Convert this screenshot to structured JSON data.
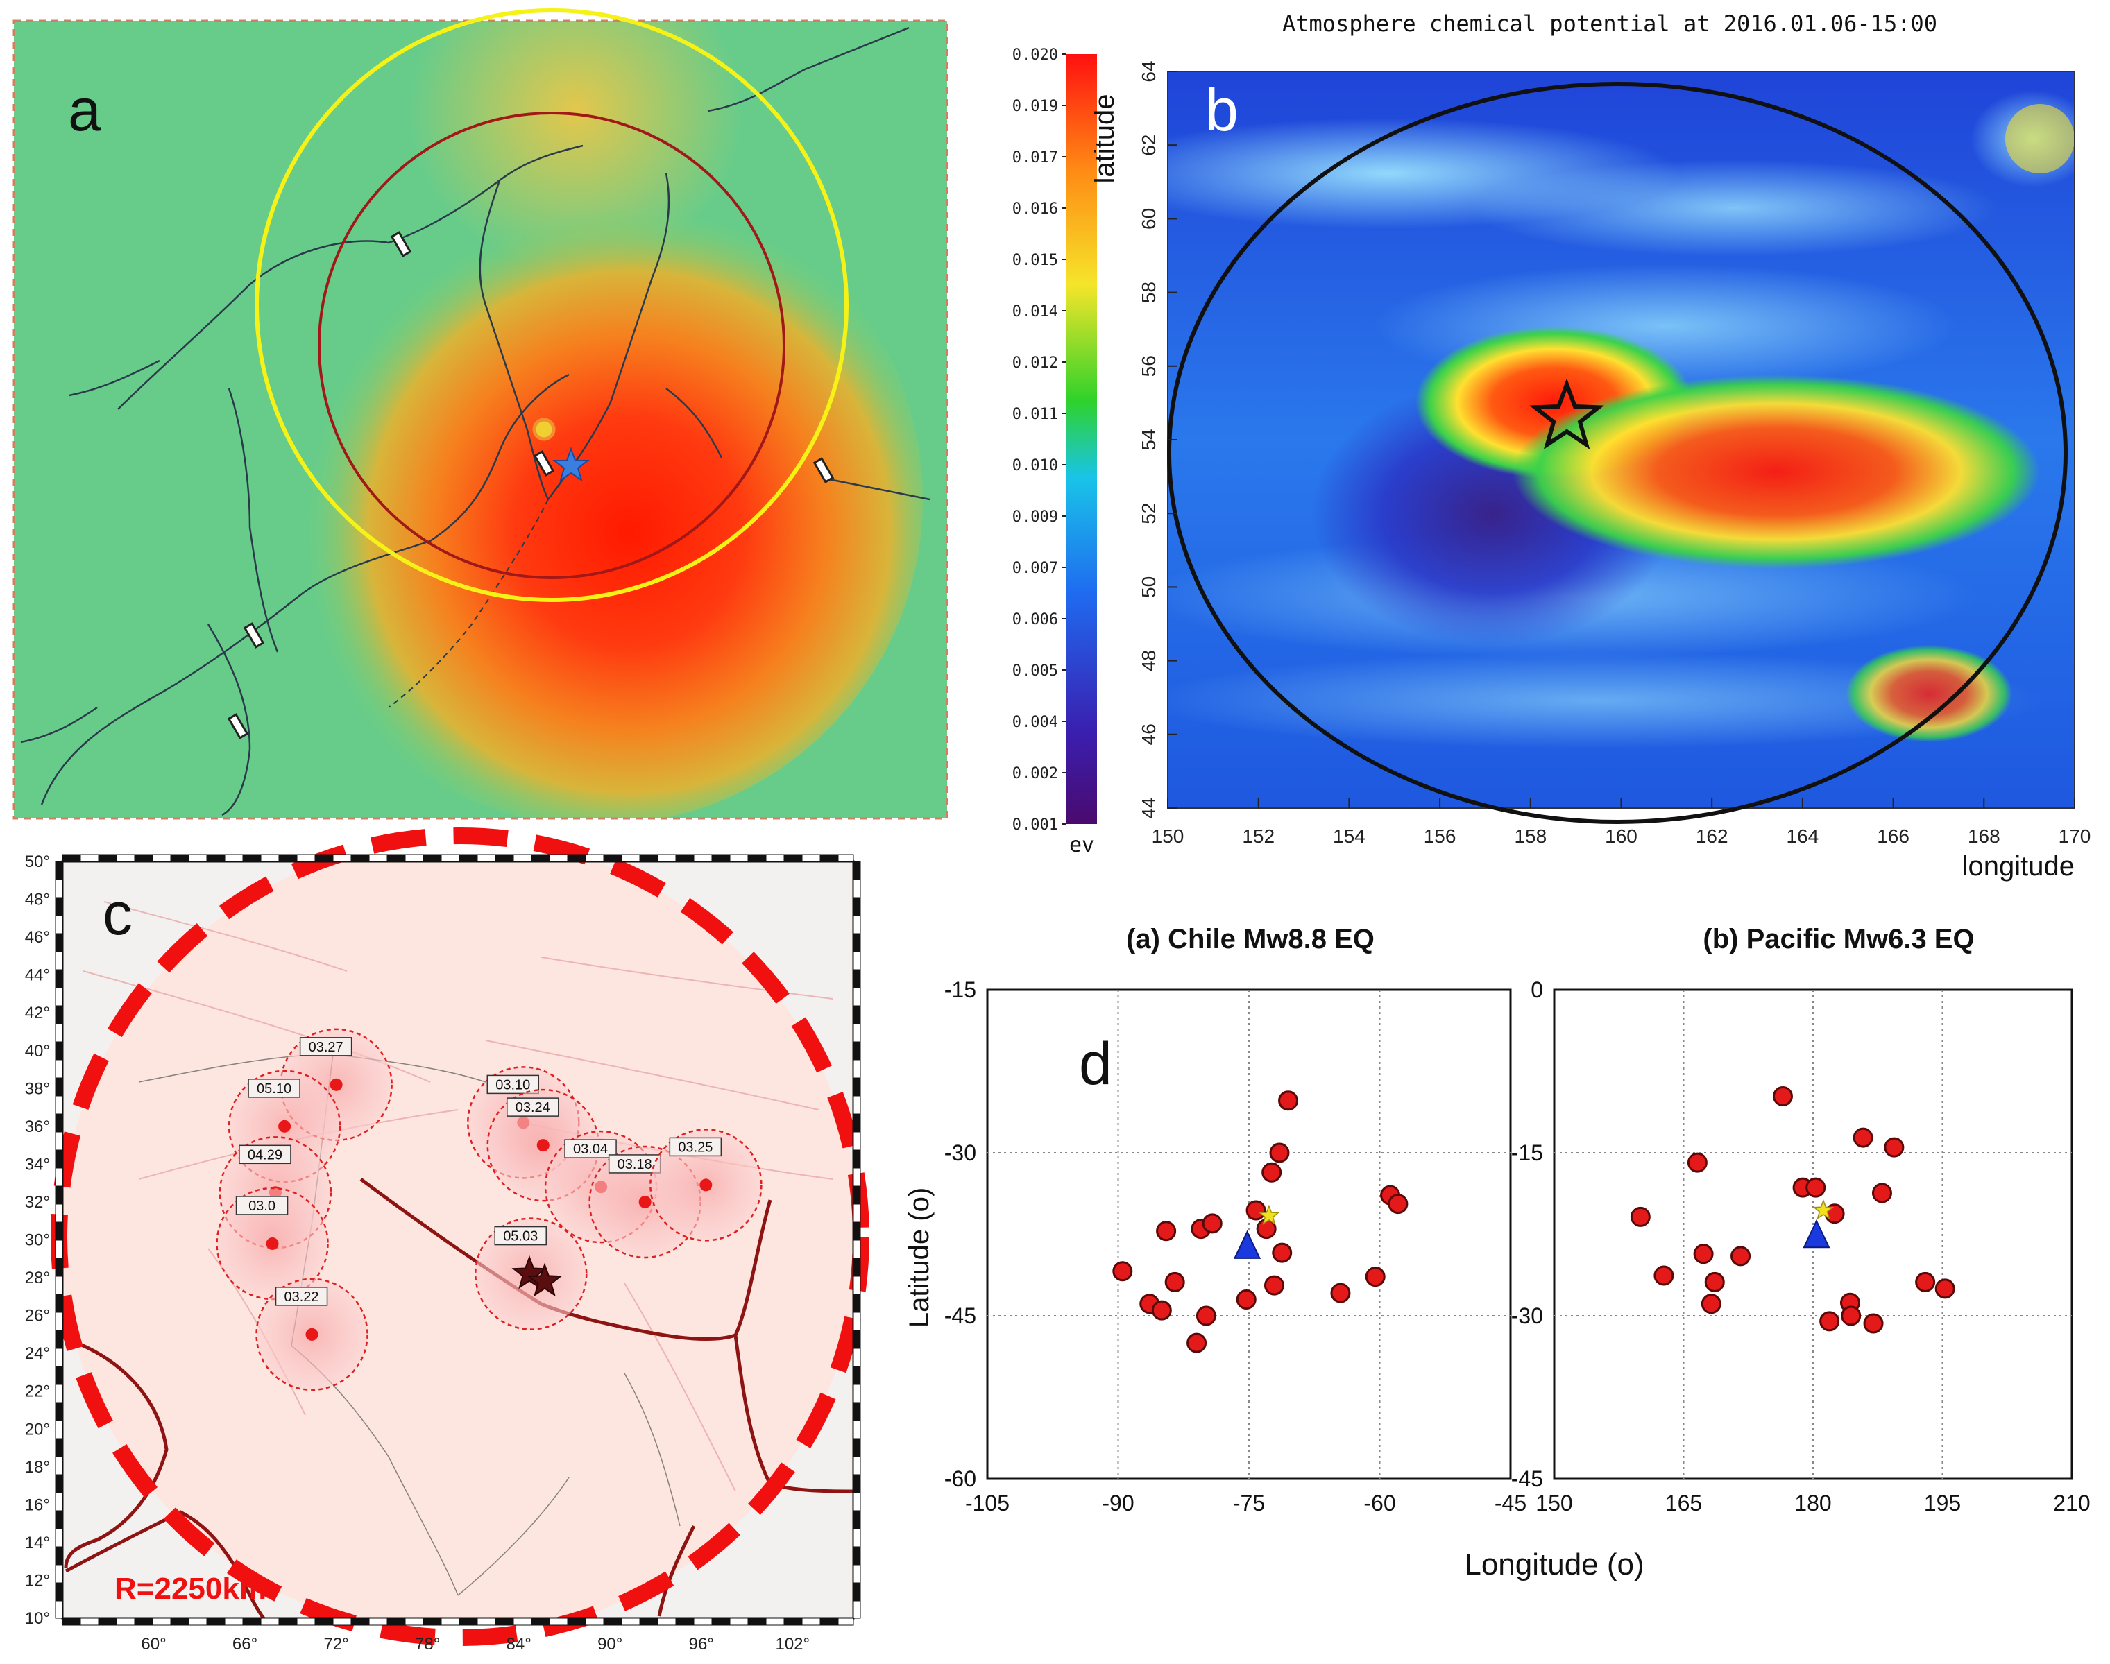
{
  "figure": {
    "panel_a": {
      "label": "a",
      "legend_markers": [
        "yellow-circle-epicenter-alt",
        "blue-star-epicenter"
      ]
    },
    "panel_b": {
      "label": "b",
      "title": "Atmosphere chemical potential at 2016.01.06-15:00",
      "colorbar_ticks": [
        "0.020",
        "0.019",
        "0.017",
        "0.016",
        "0.015",
        "0.014",
        "0.012",
        "0.011",
        "0.010",
        "0.009",
        "0.007",
        "0.006",
        "0.005",
        "0.004",
        "0.002",
        "0.001"
      ],
      "colorbar_unit": "ev",
      "ylabel": "latitude",
      "xlabel": "longitude"
    },
    "panel_c": {
      "label": "c",
      "radius_label": "R=2250km",
      "circle_labels": [
        "03.27",
        "05.10",
        "04.29",
        "03.0",
        "03.22",
        "03.10",
        "03.24",
        "03.04",
        "03.18",
        "03.25",
        "05.03"
      ]
    },
    "panel_d": {
      "label": "d",
      "xlabel": "Longitude (o)",
      "ylabel": "Latitude (o)"
    }
  },
  "chart_data": [
    {
      "type": "heatmap",
      "panel": "b",
      "title": "Atmosphere chemical potential at 2016.01.06-15:00",
      "xlabel": "longitude",
      "ylabel": "latitude",
      "xlim": [
        150,
        170
      ],
      "ylim": [
        44,
        64
      ],
      "xticks": [
        150,
        152,
        154,
        156,
        158,
        160,
        162,
        164,
        166,
        168,
        170
      ],
      "yticks": [
        44,
        46,
        48,
        50,
        52,
        54,
        56,
        58,
        60,
        62,
        64
      ],
      "colorbar": {
        "min": 0.001,
        "max": 0.02,
        "unit": "ev"
      },
      "epicenter": {
        "lon": 158.8,
        "lat": 54.6
      }
    },
    {
      "type": "scatter",
      "panel": "c",
      "xlim": [
        54,
        106
      ],
      "ylim": [
        10,
        50
      ],
      "xticks": [
        60,
        66,
        72,
        78,
        84,
        90,
        96,
        102
      ],
      "yticks": [
        10,
        12,
        14,
        16,
        18,
        20,
        22,
        24,
        26,
        28,
        30,
        32,
        34,
        36,
        38,
        40,
        42,
        44,
        46,
        48,
        50
      ],
      "epicenters": [
        {
          "lon": 84.7,
          "lat": 28.2
        },
        {
          "lon": 85.7,
          "lat": 27.8
        }
      ],
      "anomalies": [
        {
          "label": "03.27",
          "lon": 72.0,
          "lat": 38.2
        },
        {
          "label": "05.10",
          "lon": 68.6,
          "lat": 36.0
        },
        {
          "label": "04.29",
          "lon": 68.0,
          "lat": 32.5
        },
        {
          "label": "03.0",
          "lon": 67.8,
          "lat": 29.8
        },
        {
          "label": "03.22",
          "lon": 70.4,
          "lat": 25.0
        },
        {
          "label": "03.10",
          "lon": 84.3,
          "lat": 36.2
        },
        {
          "label": "03.24",
          "lon": 85.6,
          "lat": 35.0
        },
        {
          "label": "03.04",
          "lon": 89.4,
          "lat": 32.8
        },
        {
          "label": "03.18",
          "lon": 92.3,
          "lat": 32.0
        },
        {
          "label": "03.25",
          "lon": 96.3,
          "lat": 32.9
        },
        {
          "label": "05.03",
          "lon": 84.8,
          "lat": 28.2
        }
      ]
    },
    {
      "type": "scatter",
      "panel": "d",
      "title": "(a) Chile Mw8.8 EQ",
      "xlim": [
        -105,
        -45
      ],
      "ylim": [
        -60,
        -15
      ],
      "xticks": [
        -105,
        -90,
        -75,
        -60,
        -45
      ],
      "yticks": [
        -15,
        -30,
        -45,
        -60
      ],
      "epicenter": {
        "lon": -72.7,
        "lat": -35.8
      },
      "station": {
        "lon": -75.2,
        "lat": -38.8
      },
      "points": [
        {
          "lon": -70.5,
          "lat": -25.2
        },
        {
          "lon": -71.5,
          "lat": -30.0
        },
        {
          "lon": -72.4,
          "lat": -31.8
        },
        {
          "lon": -58.8,
          "lat": -33.9
        },
        {
          "lon": -57.9,
          "lat": -34.7
        },
        {
          "lon": -84.5,
          "lat": -37.2
        },
        {
          "lon": -80.5,
          "lat": -37.0
        },
        {
          "lon": -79.2,
          "lat": -36.5
        },
        {
          "lon": -74.2,
          "lat": -35.3
        },
        {
          "lon": -73.0,
          "lat": -37.0
        },
        {
          "lon": -71.2,
          "lat": -39.2
        },
        {
          "lon": -89.5,
          "lat": -40.9
        },
        {
          "lon": -83.5,
          "lat": -41.9
        },
        {
          "lon": -75.3,
          "lat": -43.5
        },
        {
          "lon": -72.1,
          "lat": -42.2
        },
        {
          "lon": -64.5,
          "lat": -42.9
        },
        {
          "lon": -60.5,
          "lat": -41.4
        },
        {
          "lon": -86.4,
          "lat": -43.9
        },
        {
          "lon": -85.0,
          "lat": -44.5
        },
        {
          "lon": -79.9,
          "lat": -45.0
        },
        {
          "lon": -81.0,
          "lat": -47.5
        }
      ]
    },
    {
      "type": "scatter",
      "panel": "d",
      "title": "(b) Pacific Mw6.3 EQ",
      "xlim": [
        150,
        210
      ],
      "ylim": [
        -45,
        0
      ],
      "xticks": [
        150,
        165,
        180,
        195,
        210
      ],
      "yticks": [
        0,
        -15,
        -30,
        -45
      ],
      "epicenter": {
        "lon": 181.2,
        "lat": -20.3
      },
      "station": {
        "lon": 180.4,
        "lat": -22.8
      },
      "points": [
        {
          "lon": 176.5,
          "lat": -9.8
        },
        {
          "lon": 185.8,
          "lat": -13.6
        },
        {
          "lon": 189.4,
          "lat": -14.5
        },
        {
          "lon": 166.6,
          "lat": -15.9
        },
        {
          "lon": 178.8,
          "lat": -18.2
        },
        {
          "lon": 180.3,
          "lat": -18.2
        },
        {
          "lon": 188.0,
          "lat": -18.7
        },
        {
          "lon": 160.0,
          "lat": -20.9
        },
        {
          "lon": 182.5,
          "lat": -20.6
        },
        {
          "lon": 167.3,
          "lat": -24.3
        },
        {
          "lon": 171.6,
          "lat": -24.5
        },
        {
          "lon": 162.7,
          "lat": -26.3
        },
        {
          "lon": 168.6,
          "lat": -26.9
        },
        {
          "lon": 193.0,
          "lat": -26.9
        },
        {
          "lon": 195.3,
          "lat": -27.5
        },
        {
          "lon": 168.2,
          "lat": -28.9
        },
        {
          "lon": 184.3,
          "lat": -28.8
        },
        {
          "lon": 181.9,
          "lat": -30.5
        },
        {
          "lon": 184.4,
          "lat": -30.0
        },
        {
          "lon": 187.0,
          "lat": -30.7
        }
      ]
    }
  ]
}
